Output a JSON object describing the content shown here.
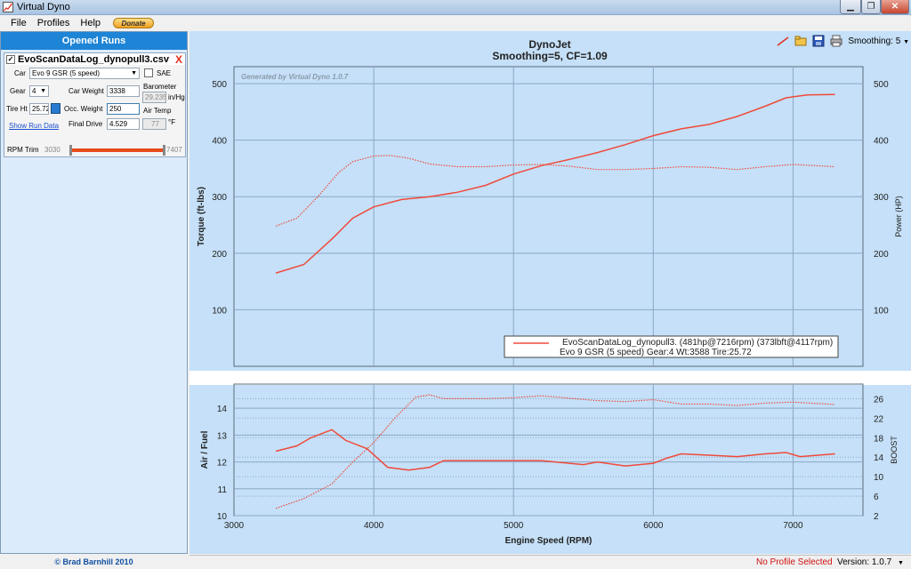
{
  "window": {
    "title": "Virtual Dyno"
  },
  "menu": {
    "items": [
      "File",
      "Profiles",
      "Help"
    ],
    "donate_label": "Donate"
  },
  "left_panel": {
    "header": "Opened Runs",
    "run": {
      "filename": "EvoScanDataLog_dynopull3.csv",
      "checked": true,
      "close_label": "X",
      "car_label": "Car",
      "car_value": "Evo 9 GSR (5 speed)",
      "sae_label": "SAE",
      "gear_label": "Gear",
      "gear_value": "4",
      "car_weight_label": "Car Weight",
      "car_weight_value": "3338",
      "barometer_label": "Barometer",
      "barometer_value": "29.235",
      "barometer_unit": "in/Hg",
      "tire_label": "Tire Ht",
      "tire_value": "25.72",
      "occ_weight_label": "Occ. Weight",
      "occ_weight_value": "250",
      "air_temp_label": "Air Temp",
      "air_temp_value": "77",
      "air_temp_unit": "°F",
      "show_run_data": "Show Run Data",
      "final_drive_label": "Final Drive",
      "final_drive_value": "4.529",
      "rpm_trim_label": "RPM Trim",
      "rpm_trim_min": "3030",
      "rpm_trim_max": "7407"
    },
    "copyright": "© Brad Barnhill 2010"
  },
  "toolbar": {
    "smoothing_label": "Smoothing: 5"
  },
  "status": {
    "profile": "No Profile Selected",
    "version": "Version: 1.0.7"
  },
  "colors": {
    "series": "#f04a3a",
    "plot_bg": "#c5e0f8",
    "grid": "#8aa8c4"
  },
  "chart_data": [
    {
      "type": "line",
      "title": "DynoJet",
      "subtitle": "Smoothing=5, CF=1.09",
      "watermark": "Generated by Virtual Dyno 1.0.7",
      "ylabel": "Torque (ft-lbs)",
      "y2label": "Power (HP)",
      "xlim": [
        3000,
        7500
      ],
      "ylim": [
        0,
        530
      ],
      "yticks": [
        100,
        200,
        300,
        400,
        500
      ],
      "grid": true,
      "legend": {
        "position": "bottom-right",
        "line1": "EvoScanDataLog_dynopull3. (481hp@7216rpm) (373lbft@4117rpm)",
        "line2": "Evo 9 GSR (5 speed) Gear:4 Wt:3588 Tire:25.72"
      },
      "series": [
        {
          "style": "solid",
          "x": [
            3300,
            3500,
            3700,
            3850,
            4000,
            4200,
            4400,
            4600,
            4800,
            5000,
            5200,
            5400,
            5600,
            5800,
            6000,
            6200,
            6400,
            6600,
            6800,
            6950,
            7100,
            7300
          ],
          "values": [
            165,
            180,
            225,
            262,
            282,
            295,
            300,
            308,
            320,
            340,
            355,
            366,
            378,
            392,
            408,
            420,
            428,
            442,
            460,
            475,
            480,
            481
          ]
        },
        {
          "style": "dotted",
          "x": [
            3300,
            3450,
            3600,
            3750,
            3850,
            4000,
            4117,
            4250,
            4400,
            4600,
            4800,
            5000,
            5200,
            5400,
            5600,
            5800,
            6000,
            6200,
            6400,
            6600,
            6800,
            7000,
            7300
          ],
          "values": [
            248,
            262,
            300,
            343,
            362,
            372,
            373,
            368,
            358,
            353,
            353,
            356,
            357,
            354,
            348,
            348,
            350,
            353,
            352,
            348,
            353,
            357,
            353
          ]
        }
      ]
    },
    {
      "type": "line",
      "ylabel": "Air / Fuel",
      "y2label": "BOOST",
      "xlabel": "Engine Speed (RPM)",
      "xlim": [
        3000,
        7500
      ],
      "xticks": [
        3000,
        4000,
        5000,
        6000,
        7000
      ],
      "ylim": [
        10,
        14.9
      ],
      "yticks": [
        10,
        11,
        12,
        13,
        14
      ],
      "y2lim": [
        2,
        29
      ],
      "y2ticks": [
        2,
        6,
        10,
        14,
        18,
        22,
        26
      ],
      "grid": true,
      "series": [
        {
          "style": "solid",
          "axis": "left",
          "x": [
            3300,
            3450,
            3550,
            3700,
            3800,
            3950,
            4100,
            4250,
            4400,
            4500,
            4700,
            5000,
            5200,
            5400,
            5500,
            5600,
            5800,
            6000,
            6100,
            6200,
            6400,
            6600,
            6800,
            6950,
            7050,
            7300
          ],
          "values": [
            12.4,
            12.6,
            12.9,
            13.2,
            12.8,
            12.5,
            11.8,
            11.7,
            11.8,
            12.05,
            12.05,
            12.05,
            12.05,
            11.95,
            11.9,
            12.0,
            11.85,
            11.95,
            12.15,
            12.3,
            12.25,
            12.2,
            12.3,
            12.35,
            12.2,
            12.3
          ]
        },
        {
          "style": "dotted",
          "axis": "right",
          "x": [
            3300,
            3500,
            3700,
            3850,
            4000,
            4150,
            4300,
            4400,
            4500,
            4800,
            5000,
            5200,
            5400,
            5600,
            5800,
            6000,
            6200,
            6400,
            6600,
            6800,
            7000,
            7300
          ],
          "values": [
            3.5,
            5.5,
            8.5,
            13,
            17,
            22,
            26.3,
            26.8,
            26,
            26,
            26.2,
            26.6,
            26.1,
            25.6,
            25.4,
            25.8,
            24.9,
            24.9,
            24.6,
            25.1,
            25.3,
            24.8
          ]
        }
      ]
    }
  ]
}
